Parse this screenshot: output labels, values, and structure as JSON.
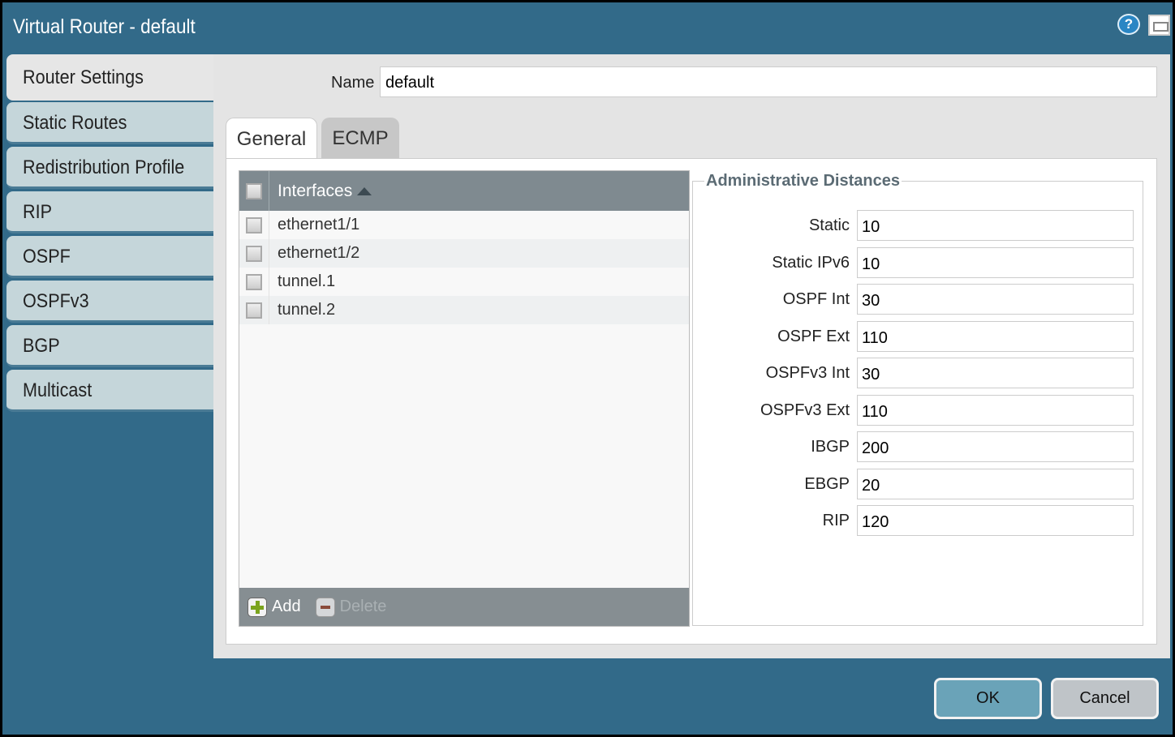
{
  "window": {
    "title": "Virtual Router - default",
    "help_icon": "?"
  },
  "sidebar": {
    "items": [
      {
        "label": "Router Settings",
        "active": true
      },
      {
        "label": "Static Routes"
      },
      {
        "label": "Redistribution Profile"
      },
      {
        "label": "RIP"
      },
      {
        "label": "OSPF"
      },
      {
        "label": "OSPFv3"
      },
      {
        "label": "BGP"
      },
      {
        "label": "Multicast"
      }
    ]
  },
  "name_field": {
    "label": "Name",
    "value": "default"
  },
  "tabs": [
    {
      "label": "General",
      "active": true
    },
    {
      "label": "ECMP"
    }
  ],
  "interfaces": {
    "header": "Interfaces",
    "sort": "ascending",
    "rows": [
      "ethernet1/1",
      "ethernet1/2",
      "tunnel.1",
      "tunnel.2"
    ],
    "add_label": "Add",
    "delete_label": "Delete"
  },
  "admin_distances": {
    "title": "Administrative Distances",
    "fields": [
      {
        "label": "Static",
        "value": "10"
      },
      {
        "label": "Static IPv6",
        "value": "10"
      },
      {
        "label": "OSPF Int",
        "value": "30"
      },
      {
        "label": "OSPF Ext",
        "value": "110"
      },
      {
        "label": "OSPFv3 Int",
        "value": "30"
      },
      {
        "label": "OSPFv3 Ext",
        "value": "110"
      },
      {
        "label": "IBGP",
        "value": "200"
      },
      {
        "label": "EBGP",
        "value": "20"
      },
      {
        "label": "RIP",
        "value": "120"
      }
    ]
  },
  "buttons": {
    "ok": "OK",
    "cancel": "Cancel"
  },
  "colors": {
    "window": "#326a89",
    "header": "#7f8a90",
    "ok": "#6aa3b8",
    "add": "#7aa31c"
  }
}
